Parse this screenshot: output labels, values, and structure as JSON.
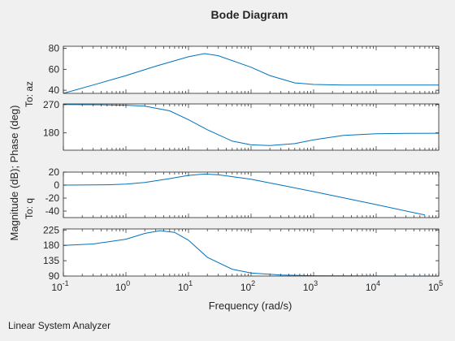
{
  "window": {
    "footer_label": "Linear System Analyzer"
  },
  "colors": {
    "line": "#0072bd",
    "axes": "#262626",
    "plot_bg": "#ffffff",
    "fig_bg": "#f0f0f0"
  },
  "chart_data": {
    "type": "line",
    "title": "Bode Diagram",
    "xlabel": "Frequency (rad/s)",
    "ylabel": "Magnitude (dB); Phase (deg)",
    "xscale": "log",
    "xlim": [
      0.1,
      100000
    ],
    "x_ticks": [
      {
        "base": "10",
        "exp": "-1"
      },
      {
        "base": "10",
        "exp": "0"
      },
      {
        "base": "10",
        "exp": "1"
      },
      {
        "base": "10",
        "exp": "2"
      },
      {
        "base": "10",
        "exp": "3"
      },
      {
        "base": "10",
        "exp": "4"
      },
      {
        "base": "10",
        "exp": "5"
      }
    ],
    "grid": false,
    "output_labels": [
      "To: az",
      "To: q"
    ],
    "panels": [
      {
        "name": "az-magnitude",
        "ylim": [
          37,
          82
        ],
        "yticks": [
          "40",
          "60",
          "80"
        ],
        "ytick_values": [
          40,
          60,
          80
        ],
        "x": [
          0.1,
          0.3,
          1,
          3,
          10,
          18,
          30,
          100,
          200,
          500,
          1000,
          3000,
          10000,
          100000
        ],
        "y": [
          37,
          45,
          54,
          63,
          72,
          75,
          73,
          62,
          54,
          47,
          45.5,
          45,
          45,
          45
        ]
      },
      {
        "name": "az-phase",
        "ylim": [
          125,
          272
        ],
        "yticks": [
          "180",
          "270"
        ],
        "ytick_values": [
          180,
          270
        ],
        "x": [
          0.1,
          0.5,
          1,
          2,
          5,
          10,
          20,
          50,
          100,
          200,
          500,
          1000,
          3000,
          10000,
          30000,
          100000
        ],
        "y": [
          270,
          269,
          268,
          265,
          250,
          222,
          190,
          154,
          142,
          140,
          146,
          158,
          172,
          177,
          178.5,
          179
        ]
      },
      {
        "name": "q-magnitude",
        "ylim": [
          -50,
          20
        ],
        "yticks": [
          "20",
          "0",
          "-20",
          "-40"
        ],
        "ytick_values": [
          20,
          0,
          -20,
          -40
        ],
        "x": [
          0.1,
          0.5,
          1,
          2,
          5,
          10,
          18,
          30,
          100,
          300,
          1000,
          10000,
          60000
        ],
        "y": [
          0,
          0.5,
          1.5,
          4,
          10,
          15,
          17,
          16,
          9,
          0,
          -10,
          -30,
          -46
        ]
      },
      {
        "name": "q-phase",
        "ylim": [
          90,
          228
        ],
        "yticks": [
          "225",
          "180",
          "135",
          "90"
        ],
        "ytick_values": [
          225,
          180,
          135,
          90
        ],
        "x": [
          0.1,
          0.3,
          1,
          2,
          3.5,
          6,
          10,
          20,
          50,
          100,
          300,
          1000,
          10000,
          100000
        ],
        "y": [
          180,
          184,
          198,
          215,
          223,
          218,
          195,
          145,
          110,
          99,
          93,
          91,
          90.3,
          90
        ]
      }
    ]
  }
}
